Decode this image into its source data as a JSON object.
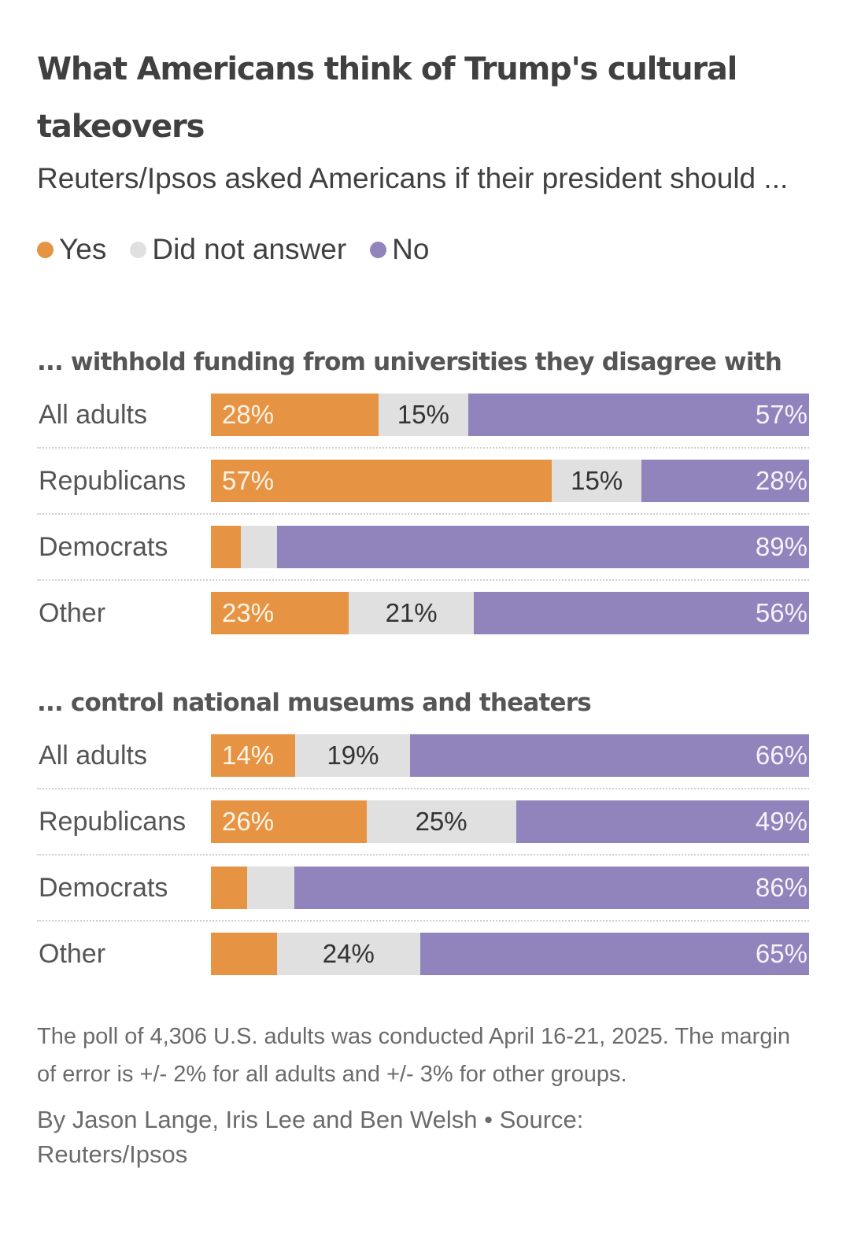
{
  "colors": {
    "yes": "#E69443",
    "did_not_answer": "#E0E0E0",
    "no": "#9183BB"
  },
  "chart_data": {
    "type": "bar",
    "orientation": "horizontal-stacked-100",
    "title": "What Americans think of Trump's cultural takeovers",
    "subtitle": "Reuters/Ipsos asked Americans if their president should ...",
    "legend": {
      "placement": "top-left",
      "entries": [
        "Yes",
        "Did not answer",
        "No"
      ]
    },
    "series_names": [
      "Yes",
      "Did not answer",
      "No"
    ],
    "panels": [
      {
        "title": "... withhold funding from universities they disagree with",
        "categories": [
          "All adults",
          "Republicans",
          "Democrats",
          "Other"
        ],
        "series": [
          {
            "name": "Yes",
            "values": [
              28,
              57,
              5,
              23
            ],
            "labels": [
              "28%",
              "57%",
              "",
              "23%"
            ]
          },
          {
            "name": "Did not answer",
            "values": [
              15,
              15,
              6,
              21
            ],
            "labels": [
              "15%",
              "15%",
              "",
              "21%"
            ]
          },
          {
            "name": "No",
            "values": [
              57,
              28,
              89,
              56
            ],
            "labels": [
              "57%",
              "28%",
              "89%",
              "56%"
            ]
          }
        ]
      },
      {
        "title": "... control national museums and theaters",
        "categories": [
          "All adults",
          "Republicans",
          "Democrats",
          "Other"
        ],
        "series": [
          {
            "name": "Yes",
            "values": [
              14,
              26,
              6,
              11
            ],
            "labels": [
              "14%",
              "26%",
              "",
              ""
            ]
          },
          {
            "name": "Did not answer",
            "values": [
              19,
              25,
              8,
              24
            ],
            "labels": [
              "19%",
              "25%",
              "",
              "24%"
            ]
          },
          {
            "name": "No",
            "values": [
              66,
              49,
              86,
              65
            ],
            "labels": [
              "66%",
              "49%",
              "86%",
              "65%"
            ]
          }
        ]
      }
    ],
    "xlim": [
      0,
      100
    ],
    "grid": false
  },
  "footer": {
    "note": "The poll of 4,306 U.S. adults was conducted April 16-21, 2025. The margin of error is +/- 2% for all adults and +/- 3% for other groups.",
    "byline": "By Jason Lange, Iris Lee and Ben Welsh • Source: Reuters/Ipsos"
  }
}
